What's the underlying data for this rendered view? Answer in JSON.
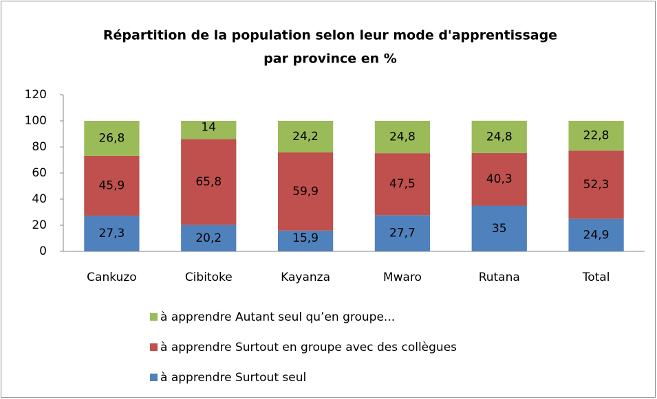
{
  "chart_data": {
    "type": "stacked_bar",
    "title": [
      "Répartition de la population selon leur mode d'apprentissage",
      "par province en %"
    ],
    "categories": [
      "Cankuzo",
      "Cibitoke",
      "Kayanza",
      "Mwaro",
      "Rutana",
      "Total"
    ],
    "series": [
      {
        "name": "à apprendre Surtout seul",
        "color": "#4f81bd",
        "values": [
          27.3,
          20.2,
          15.9,
          27.7,
          35,
          24.9
        ],
        "value_labels": [
          "27,3",
          "20,2",
          "15,9",
          "27,7",
          "35",
          "24,9"
        ]
      },
      {
        "name": "à apprendre Surtout en groupe avec des collègues",
        "color": "#c0504d",
        "values": [
          45.9,
          65.8,
          59.9,
          47.5,
          40.3,
          52.3
        ],
        "value_labels": [
          "45,9",
          "65,8",
          "59,9",
          "47,5",
          "40,3",
          "52,3"
        ]
      },
      {
        "name": "à apprendre Autant seul qu’en groupe...",
        "color": "#9bbb59",
        "values": [
          26.8,
          14,
          24.2,
          24.8,
          24.8,
          22.8
        ],
        "value_labels": [
          "26,8",
          "14",
          "24,2",
          "24,8",
          "24,8",
          "22,8"
        ]
      }
    ],
    "ylim": [
      0,
      120
    ],
    "yticks": [
      0,
      20,
      40,
      60,
      80,
      100,
      120
    ],
    "grid": false,
    "legend": "bottom"
  }
}
